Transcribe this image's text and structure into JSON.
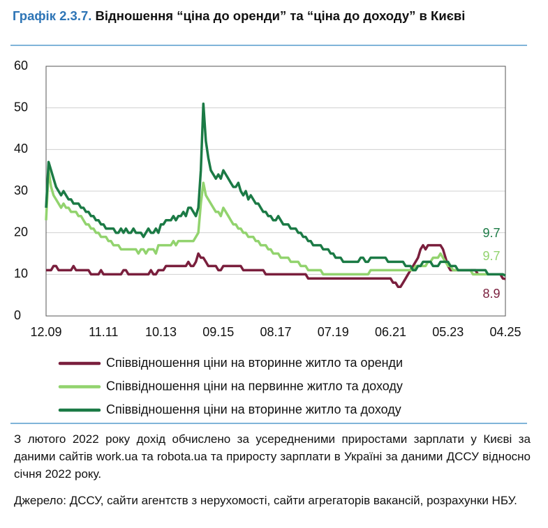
{
  "chart_data": {
    "type": "line",
    "figure_label": "Графік 2.3.7.",
    "title": "Відношення “ціна до оренди” та “ціна до доходу” в Києві",
    "note": "З лютого 2022 року дохід обчислено за усередненими приростами зарплати у Києві за даними сайтів work.ua та robota.ua та приросту зарплати в Україні за даними ДССУ відносно січня 2022 року.",
    "source": "Джерело: ДССУ, сайти агентств з нерухомості, сайти агрегаторів вакансій, розрахунки НБУ.",
    "ylim": [
      0,
      60
    ],
    "yticks": [
      0,
      10,
      20,
      30,
      40,
      50,
      60
    ],
    "grid": true,
    "categories": [
      "12.09",
      null,
      null,
      null,
      null,
      null,
      null,
      null,
      null,
      null,
      null,
      null,
      null,
      null,
      null,
      null,
      null,
      null,
      null,
      null,
      null,
      null,
      null,
      "11.11",
      null,
      null,
      null,
      null,
      null,
      null,
      null,
      null,
      null,
      null,
      null,
      null,
      null,
      null,
      null,
      null,
      null,
      null,
      null,
      null,
      null,
      null,
      "10.13",
      null,
      null,
      null,
      null,
      null,
      null,
      null,
      null,
      null,
      null,
      null,
      null,
      null,
      null,
      null,
      null,
      null,
      null,
      null,
      null,
      null,
      null,
      "09.15",
      null,
      null,
      null,
      null,
      null,
      null,
      null,
      null,
      null,
      null,
      null,
      null,
      null,
      null,
      null,
      null,
      null,
      null,
      null,
      null,
      null,
      null,
      "08.17",
      null,
      null,
      null,
      null,
      null,
      null,
      null,
      null,
      null,
      null,
      null,
      null,
      null,
      null,
      null,
      null,
      null,
      null,
      null,
      null,
      null,
      null,
      "07.19",
      null,
      null,
      null,
      null,
      null,
      null,
      null,
      null,
      null,
      null,
      null,
      null,
      null,
      null,
      null,
      null,
      null,
      null,
      null,
      null,
      null,
      null,
      "06.21",
      null,
      null,
      null,
      null,
      null,
      null,
      null,
      null,
      null,
      null,
      null,
      null,
      null,
      null,
      null,
      null,
      null,
      null,
      null,
      null,
      null,
      null,
      "05.23",
      null,
      null,
      null,
      null,
      null,
      null,
      null,
      null,
      null,
      null,
      null,
      null,
      null,
      null,
      null,
      null,
      null,
      null,
      null,
      null,
      null,
      null,
      "04.25"
    ],
    "series": [
      {
        "name": "Співвідношення ціни на вторинне житло та оренди",
        "color": "#7a1f3d",
        "values": [
          11,
          11,
          11,
          12,
          12,
          11,
          11,
          11,
          11,
          11,
          11,
          12,
          11,
          11,
          11,
          11,
          11,
          11,
          10,
          10,
          10,
          10,
          11,
          10,
          10,
          10,
          10,
          10,
          10,
          10,
          10,
          11,
          11,
          10,
          10,
          10,
          10,
          10,
          10,
          10,
          10,
          10,
          11,
          10,
          10,
          11,
          11,
          11,
          12,
          12,
          12,
          12,
          12,
          12,
          12,
          12,
          12,
          13,
          12,
          12,
          13,
          15,
          14,
          14,
          13,
          12,
          12,
          12,
          12,
          11,
          11,
          12,
          12,
          12,
          12,
          12,
          12,
          12,
          12,
          11,
          11,
          11,
          11,
          11,
          11,
          11,
          11,
          11,
          10,
          10,
          10,
          10,
          10,
          10,
          10,
          10,
          10,
          10,
          10,
          10,
          10,
          10,
          10,
          10,
          10,
          9,
          9,
          9,
          9,
          9,
          9,
          9,
          9,
          9,
          9,
          9,
          9,
          9,
          9,
          9,
          9,
          9,
          9,
          9,
          9,
          9,
          9,
          9,
          9,
          9,
          9,
          9,
          9,
          9,
          9,
          9,
          9,
          9,
          9,
          8,
          8,
          7,
          7,
          8,
          9,
          10,
          11,
          12,
          13,
          14,
          16,
          17,
          16,
          17,
          17,
          17,
          17,
          17,
          17,
          16,
          14,
          12,
          11,
          11,
          11,
          11,
          11,
          11,
          11,
          11,
          11,
          11,
          11,
          10,
          10,
          10,
          10,
          10,
          10,
          10,
          10,
          10,
          10,
          9,
          8.9
        ]
      },
      {
        "name": "Співвідношення ціни на первинне житло та доходу",
        "color": "#92d36e",
        "values": [
          23,
          35,
          31,
          29,
          28,
          27,
          26,
          27,
          26,
          26,
          25,
          25,
          25,
          24,
          24,
          23,
          22,
          22,
          21,
          21,
          20,
          20,
          19,
          19,
          19,
          18,
          18,
          17,
          17,
          17,
          16,
          16,
          16,
          16,
          16,
          16,
          16,
          15,
          16,
          16,
          15,
          16,
          16,
          16,
          15,
          17,
          17,
          17,
          17,
          17,
          17,
          18,
          17,
          18,
          18,
          18,
          18,
          18,
          18,
          18,
          19,
          20,
          27,
          32,
          29,
          28,
          27,
          26,
          25,
          25,
          24,
          26,
          25,
          24,
          23,
          22,
          22,
          21,
          21,
          20,
          20,
          19,
          19,
          19,
          18,
          18,
          17,
          17,
          17,
          16,
          16,
          15,
          15,
          15,
          14,
          14,
          14,
          14,
          13,
          13,
          13,
          13,
          12,
          12,
          12,
          11,
          11,
          11,
          11,
          11,
          11,
          10,
          10,
          10,
          10,
          10,
          10,
          10,
          10,
          10,
          10,
          10,
          10,
          10,
          10,
          10,
          10,
          10,
          10,
          10,
          11,
          11,
          11,
          11,
          11,
          11,
          11,
          11,
          11,
          11,
          11,
          11,
          11,
          11,
          11,
          11,
          11,
          11,
          12,
          12,
          12,
          12,
          12,
          13,
          13,
          14,
          14,
          14,
          15,
          14,
          13,
          12,
          12,
          11,
          11,
          11,
          11,
          11,
          11,
          11,
          11,
          10,
          10,
          10,
          10,
          10,
          10,
          10,
          10,
          10,
          10,
          10,
          10,
          10,
          9.7
        ]
      },
      {
        "name": "Співвідношення ціни на вторинне житло та доходу",
        "color": "#1b7a45",
        "values": [
          26,
          37,
          35,
          33,
          31,
          30,
          29,
          30,
          29,
          28,
          28,
          27,
          27,
          27,
          26,
          26,
          25,
          25,
          24,
          24,
          23,
          23,
          22,
          22,
          21,
          21,
          21,
          21,
          20,
          20,
          21,
          20,
          21,
          20,
          20,
          21,
          20,
          20,
          20,
          19,
          20,
          21,
          20,
          20,
          21,
          20,
          22,
          22,
          23,
          23,
          23,
          24,
          23,
          24,
          24,
          25,
          24,
          26,
          26,
          25,
          24,
          26,
          35,
          51,
          42,
          38,
          35,
          34,
          33,
          34,
          33,
          35,
          34,
          33,
          32,
          31,
          31,
          32,
          30,
          29,
          30,
          28,
          29,
          28,
          27,
          27,
          26,
          25,
          25,
          24,
          24,
          23,
          23,
          24,
          23,
          22,
          22,
          22,
          21,
          21,
          21,
          20,
          20,
          19,
          19,
          18,
          18,
          17,
          17,
          17,
          17,
          16,
          16,
          16,
          15,
          15,
          14,
          14,
          14,
          13,
          13,
          13,
          13,
          13,
          13,
          13,
          14,
          14,
          13,
          13,
          14,
          14,
          14,
          14,
          14,
          14,
          14,
          13,
          13,
          13,
          13,
          13,
          13,
          13,
          12,
          12,
          12,
          11,
          11,
          12,
          12,
          13,
          13,
          13,
          13,
          12,
          12,
          12,
          13,
          13,
          13,
          13,
          12,
          12,
          12,
          11,
          11,
          11,
          11,
          11,
          11,
          11,
          11,
          11,
          11,
          11,
          11,
          10,
          10,
          10,
          10,
          10,
          10,
          10,
          9.7
        ]
      }
    ]
  }
}
